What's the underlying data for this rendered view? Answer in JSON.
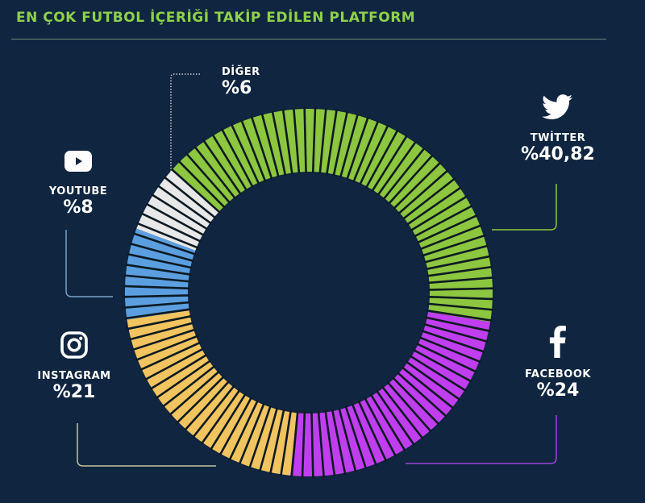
{
  "chart_data": {
    "type": "pie",
    "variant": "donut",
    "title": "EN ÇOK FUTBOL İÇERİĞİ TAKİP EDİLEN PLATFORM",
    "slices": [
      {
        "label": "TWİTTER",
        "value": 40.82,
        "display": "%40,82",
        "color": "#8dc63f",
        "icon": "twitter-bird-icon"
      },
      {
        "label": "FACEBOOK",
        "value": 24,
        "display": "%24",
        "color": "#c03ef0",
        "icon": "facebook-icon"
      },
      {
        "label": "INSTAGRAM",
        "value": 21,
        "display": "%21",
        "color": "#f2c45f",
        "icon": "instagram-icon"
      },
      {
        "label": "YOUTUBE",
        "value": 8,
        "display": "%8",
        "color": "#5b9fe0",
        "icon": "youtube-icon"
      },
      {
        "label": "DİĞER",
        "value": 6,
        "display": "%6",
        "color": "#e8e8e8",
        "icon": null
      }
    ],
    "legend": "callout labels around ring"
  },
  "colors": {
    "background": "#0f2540",
    "title": "#8fd14a"
  }
}
